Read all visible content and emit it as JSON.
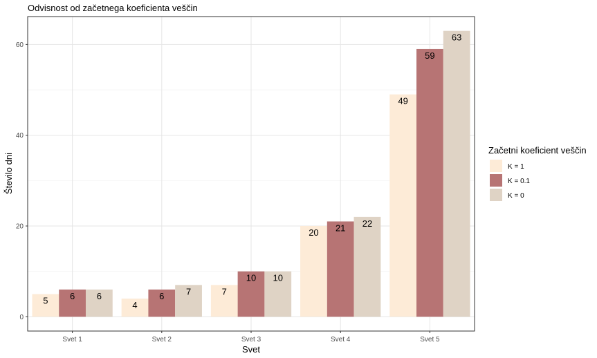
{
  "chart_data": {
    "type": "bar",
    "title": "Odvisnost od začetnega koeficienta veščin",
    "xlabel": "Svet",
    "ylabel": "Število dni",
    "categories": [
      "Svet 1",
      "Svet 2",
      "Svet 3",
      "Svet 4",
      "Svet 5"
    ],
    "series": [
      {
        "name": "K = 1",
        "values": [
          5,
          4,
          7,
          20,
          49
        ],
        "color": "#fdebd7"
      },
      {
        "name": "K = 0.1",
        "values": [
          6,
          6,
          10,
          21,
          59
        ],
        "color": "#b77474"
      },
      {
        "name": "K = 0",
        "values": [
          6,
          7,
          10,
          22,
          63
        ],
        "color": "#dfd3c5"
      }
    ],
    "ylim": [
      -3.15,
      66.15
    ],
    "yticks": [
      0,
      20,
      40,
      60
    ],
    "grid": true,
    "legend_title": "Začetni koeficient veščin",
    "legend_position": "right"
  }
}
